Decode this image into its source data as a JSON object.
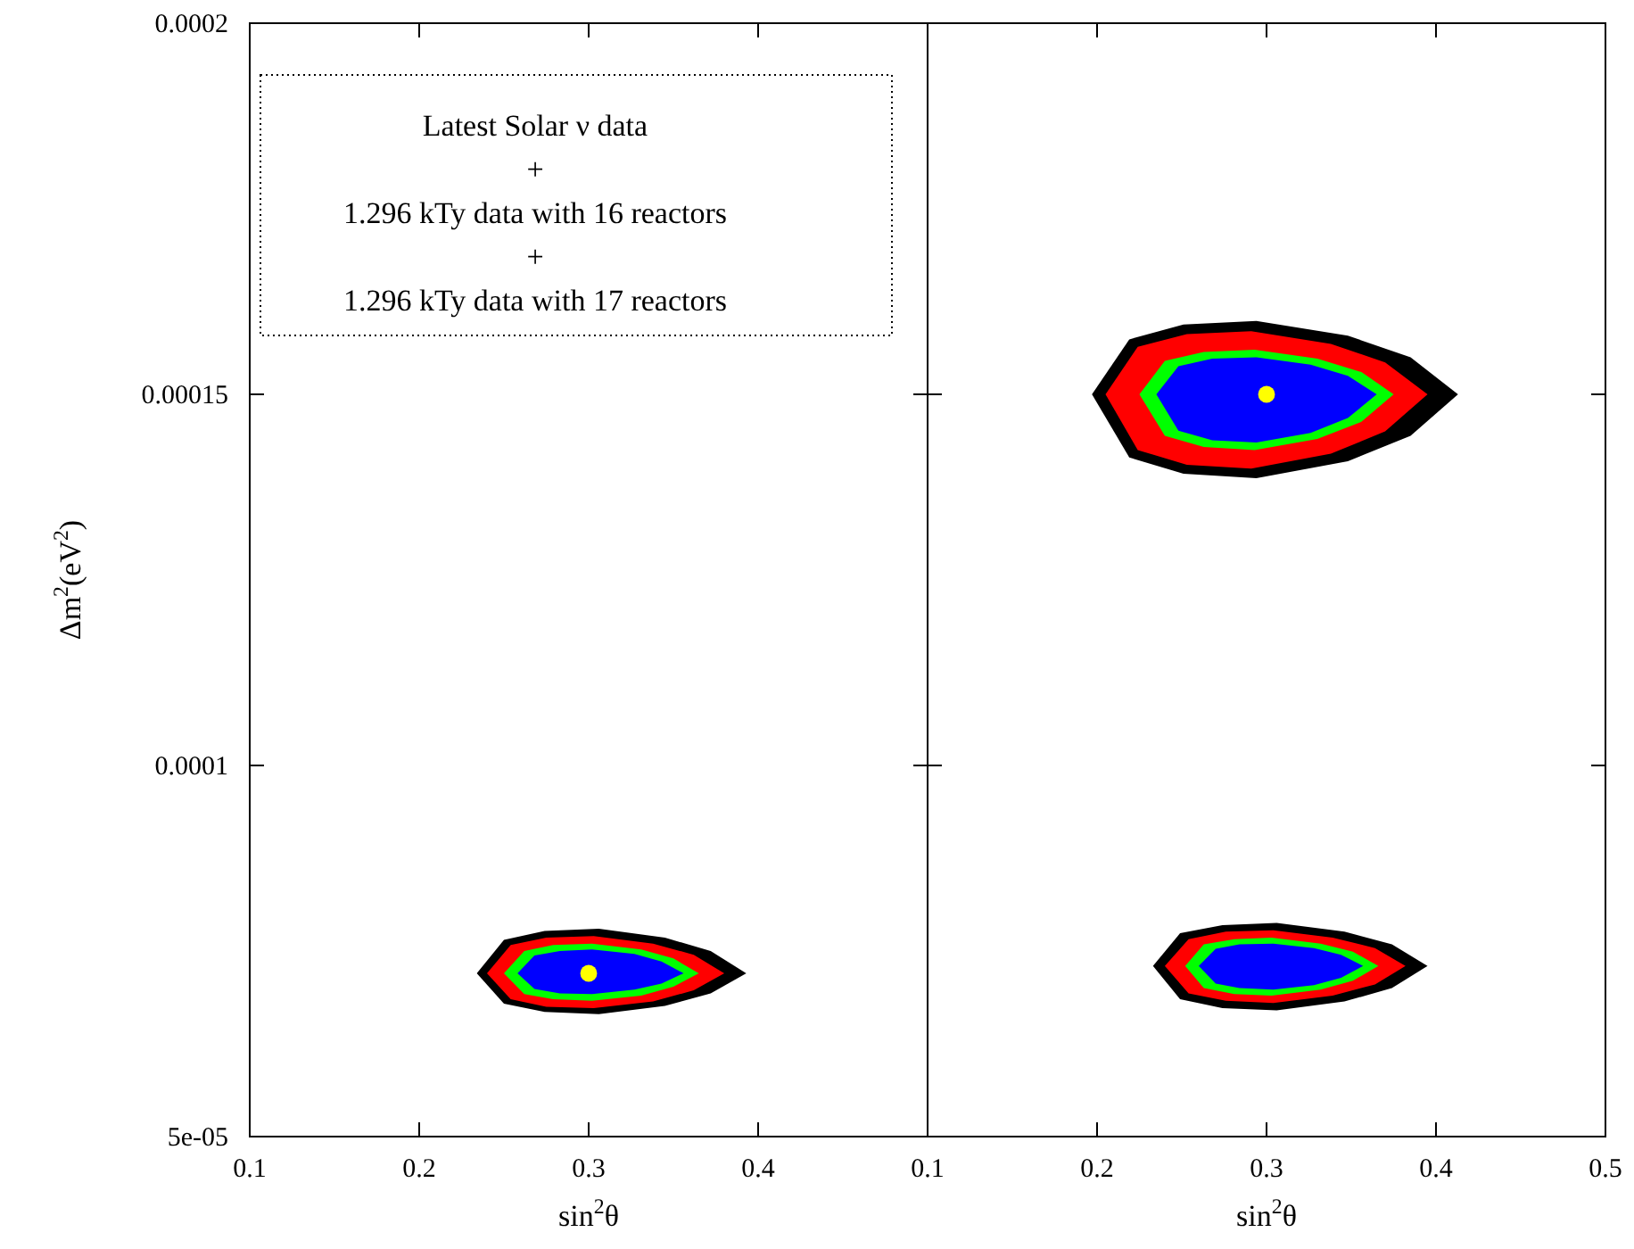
{
  "chart_data": [
    {
      "type": "area",
      "ylabel": "Δm$^{2}$(eV$^{2}$)",
      "xlabel": "sin$^{2}$θ",
      "xlim": [
        0.1,
        0.5
      ],
      "xticks": [
        0.1,
        0.2,
        0.3,
        0.4,
        {
          "value": 0.5,
          "label": null
        }
      ],
      "ylim": [
        5e-05,
        0.0002
      ],
      "yticks": [
        {
          "value": 5e-05,
          "label": "5e-05"
        },
        0.0001,
        0.00015,
        0.0002
      ],
      "grid": false,
      "annotations": [
        "Latest Solar ν data",
        "+",
        "1.296 kTy data with 16 reactors",
        "+",
        "1.296 kTy data with 17 reactors"
      ],
      "series": [
        {
          "color": "#000000",
          "x": [
            0.234,
            0.25,
            0.274,
            0.306,
            0.345,
            0.372,
            0.393,
            0.372,
            0.345,
            0.306,
            0.274,
            0.25
          ],
          "values": [
            7.2e-05,
            7.65e-05,
            7.77e-05,
            7.8e-05,
            7.68e-05,
            7.5e-05,
            7.2e-05,
            6.93e-05,
            6.76e-05,
            6.65e-05,
            6.68e-05,
            6.79e-05
          ]
        },
        {
          "color": "#ff0000",
          "x": [
            0.24,
            0.254,
            0.275,
            0.303,
            0.338,
            0.362,
            0.38,
            0.362,
            0.338,
            0.303,
            0.275,
            0.254
          ],
          "values": [
            7.2e-05,
            7.58e-05,
            7.68e-05,
            7.7e-05,
            7.6e-05,
            7.45e-05,
            7.2e-05,
            6.97e-05,
            6.82e-05,
            6.73e-05,
            6.75e-05,
            6.85e-05
          ]
        },
        {
          "color": "#00ff00",
          "x": [
            0.25,
            0.262,
            0.279,
            0.302,
            0.331,
            0.35,
            0.365,
            0.35,
            0.331,
            0.302,
            0.279,
            0.262
          ],
          "values": [
            7.2e-05,
            7.5e-05,
            7.58e-05,
            7.6e-05,
            7.52e-05,
            7.4e-05,
            7.2e-05,
            7.02e-05,
            6.9e-05,
            6.83e-05,
            6.85e-05,
            6.92e-05
          ]
        },
        {
          "color": "#0000ff",
          "x": [
            0.258,
            0.268,
            0.283,
            0.302,
            0.327,
            0.343,
            0.356,
            0.343,
            0.327,
            0.302,
            0.283,
            0.268
          ],
          "values": [
            7.2e-05,
            7.44e-05,
            7.5e-05,
            7.52e-05,
            7.46e-05,
            7.36e-05,
            7.2e-05,
            7.06e-05,
            6.98e-05,
            6.92e-05,
            6.93e-05,
            6.99e-05
          ]
        },
        {
          "type": "scatter",
          "marker": "circle",
          "color": "#ffff00",
          "x": [
            0.3
          ],
          "values": [
            7.2e-05
          ]
        }
      ]
    },
    {
      "type": "area",
      "xlabel": "sin$^{2}$θ",
      "xlim": [
        0.1,
        0.5
      ],
      "xticks": [
        0.1,
        0.2,
        0.3,
        0.4,
        0.5
      ],
      "ylim": [
        5e-05,
        0.0002
      ],
      "yticks": [
        5e-05,
        0.0001,
        0.00015,
        0.0002
      ],
      "tick_labels": "x",
      "grid": false,
      "series": [
        {
          "color": "#000000",
          "x": [
            0.233,
            0.249,
            0.274,
            0.306,
            0.346,
            0.374,
            0.395,
            0.374,
            0.346,
            0.306,
            0.274,
            0.249
          ],
          "values": [
            7.3e-05,
            7.74e-05,
            7.85e-05,
            7.88e-05,
            7.76e-05,
            7.59e-05,
            7.3e-05,
            7e-05,
            6.82e-05,
            6.7e-05,
            6.73e-05,
            6.85e-05
          ]
        },
        {
          "color": "#ff0000",
          "x": [
            0.24,
            0.254,
            0.276,
            0.304,
            0.339,
            0.364,
            0.382,
            0.364,
            0.339,
            0.304,
            0.276,
            0.254
          ],
          "values": [
            7.3e-05,
            7.66e-05,
            7.76e-05,
            7.78e-05,
            7.68e-05,
            7.54e-05,
            7.3e-05,
            7.05e-05,
            6.9e-05,
            6.8e-05,
            6.83e-05,
            6.93e-05
          ]
        },
        {
          "color": "#00ff00",
          "x": [
            0.252,
            0.263,
            0.281,
            0.303,
            0.332,
            0.351,
            0.366,
            0.351,
            0.332,
            0.303,
            0.281,
            0.263
          ],
          "values": [
            7.3e-05,
            7.59e-05,
            7.66e-05,
            7.68e-05,
            7.6e-05,
            7.49e-05,
            7.3e-05,
            7.1e-05,
            6.98e-05,
            6.9e-05,
            6.92e-05,
            7e-05
          ]
        },
        {
          "color": "#0000ff",
          "x": [
            0.26,
            0.27,
            0.284,
            0.304,
            0.328,
            0.344,
            0.357,
            0.344,
            0.328,
            0.304,
            0.284,
            0.27
          ],
          "values": [
            7.3e-05,
            7.53e-05,
            7.59e-05,
            7.6e-05,
            7.54e-05,
            7.45e-05,
            7.3e-05,
            7.14e-05,
            7.04e-05,
            6.98e-05,
            7e-05,
            7.06e-05
          ]
        },
        {
          "color": "#000000",
          "x": [
            0.197,
            0.219,
            0.251,
            0.294,
            0.348,
            0.385,
            0.413,
            0.385,
            0.348,
            0.294,
            0.251,
            0.219
          ],
          "values": [
            0.00015,
            0.0001574,
            0.0001594,
            0.0001599,
            0.0001579,
            0.000155,
            0.00015,
            0.0001444,
            0.000141,
            0.0001387,
            0.0001393,
            0.0001415
          ]
        },
        {
          "color": "#ff0000",
          "x": [
            0.205,
            0.224,
            0.253,
            0.291,
            0.338,
            0.37,
            0.395,
            0.37,
            0.338,
            0.291,
            0.253,
            0.224
          ],
          "values": [
            0.00015,
            0.0001564,
            0.0001581,
            0.0001585,
            0.0001568,
            0.0001543,
            0.00015,
            0.000145,
            0.000142,
            0.00014,
            0.0001405,
            0.0001425
          ]
        },
        {
          "color": "#00ff00",
          "x": [
            0.225,
            0.24,
            0.263,
            0.293,
            0.33,
            0.356,
            0.375,
            0.356,
            0.33,
            0.293,
            0.263,
            0.24
          ],
          "values": [
            0.00015,
            0.0001545,
            0.0001557,
            0.000156,
            0.0001548,
            0.000153,
            0.00015,
            0.0001463,
            0.000144,
            0.0001425,
            0.0001429,
            0.0001444
          ]
        },
        {
          "color": "#0000ff",
          "x": [
            0.235,
            0.248,
            0.268,
            0.294,
            0.326,
            0.348,
            0.365,
            0.348,
            0.326,
            0.294,
            0.268,
            0.248
          ],
          "values": [
            0.00015,
            0.0001538,
            0.0001548,
            0.000155,
            0.000154,
            0.0001525,
            0.00015,
            0.0001468,
            0.0001448,
            0.0001435,
            0.0001438,
            0.0001451
          ]
        },
        {
          "type": "scatter",
          "marker": "circle",
          "color": "#ffff00",
          "x": [
            0.3
          ],
          "values": [
            0.00015
          ]
        }
      ]
    }
  ]
}
